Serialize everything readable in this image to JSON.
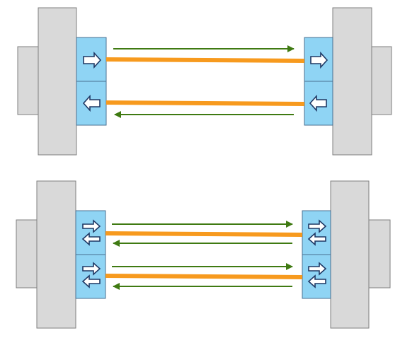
{
  "colors": {
    "background": "#ffffff",
    "device_body": "#d9d9d9",
    "device_border": "#7f7f7f",
    "port": "#8fd4f4",
    "port_border": "#4a6f90",
    "fiber": "#f79a1e",
    "signal_arrow": "#3f7a12",
    "port_arrow_fill": "#ffffff",
    "port_arrow_stroke": "#1f3864"
  },
  "diagrams": [
    {
      "name": "single-direction-ports",
      "links": [
        {
          "left_port": "right-arrow",
          "right_port": "right-arrow",
          "signal": "left-to-right"
        },
        {
          "left_port": "left-arrow",
          "right_port": "left-arrow",
          "signal": "right-to-left"
        }
      ]
    },
    {
      "name": "bidirectional-ports",
      "links": [
        {
          "left_port": "bidirectional",
          "right_port": "bidirectional",
          "signal": "both"
        },
        {
          "left_port": "bidirectional",
          "right_port": "bidirectional",
          "signal": "both"
        }
      ]
    }
  ]
}
